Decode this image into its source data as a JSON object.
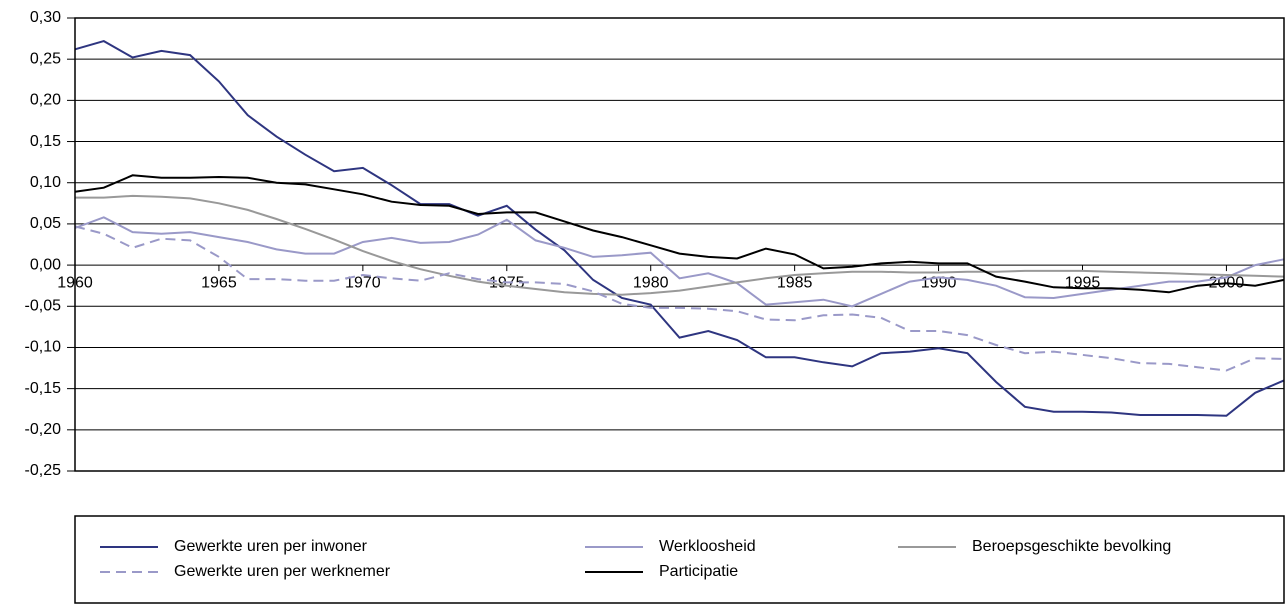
{
  "chart_data": {
    "type": "line",
    "x": [
      1960,
      1961,
      1962,
      1963,
      1964,
      1965,
      1966,
      1967,
      1968,
      1969,
      1970,
      1971,
      1972,
      1973,
      1974,
      1975,
      1976,
      1977,
      1978,
      1979,
      1980,
      1981,
      1982,
      1983,
      1984,
      1985,
      1986,
      1987,
      1988,
      1989,
      1990,
      1991,
      1992,
      1993,
      1994,
      1995,
      1996,
      1997,
      1998,
      1999,
      2000,
      2001,
      2002
    ],
    "xlim": [
      1960,
      2002
    ],
    "xticks": [
      1960,
      1965,
      1970,
      1975,
      1980,
      1985,
      1990,
      1995,
      2000
    ],
    "ylim": [
      -0.25,
      0.3
    ],
    "yticks": [
      {
        "value": -0.25,
        "label": "-0,25"
      },
      {
        "value": -0.2,
        "label": "-0,20"
      },
      {
        "value": -0.15,
        "label": "-0,15"
      },
      {
        "value": -0.1,
        "label": "-0,10"
      },
      {
        "value": -0.05,
        "label": "-0,05"
      },
      {
        "value": 0,
        "label": "0,00"
      },
      {
        "value": 0.05,
        "label": "0,05"
      },
      {
        "value": 0.1,
        "label": "0,10"
      },
      {
        "value": 0.15,
        "label": "0,15"
      },
      {
        "value": 0.2,
        "label": "0,20"
      },
      {
        "value": 0.25,
        "label": "0,25"
      },
      {
        "value": 0.3,
        "label": "0,30"
      }
    ],
    "grid": true,
    "series": [
      {
        "name": "Gewerkte uren per inwoner",
        "color": "#2e3580",
        "dashed": false,
        "values": [
          0.262,
          0.272,
          0.252,
          0.26,
          0.255,
          0.223,
          0.182,
          0.156,
          0.134,
          0.114,
          0.118,
          0.097,
          0.074,
          0.074,
          0.06,
          0.072,
          0.043,
          0.018,
          -0.018,
          -0.04,
          -0.048,
          -0.088,
          -0.08,
          -0.091,
          -0.112,
          -0.112,
          -0.118,
          -0.123,
          -0.107,
          -0.105,
          -0.101,
          -0.107,
          -0.142,
          -0.172,
          -0.178,
          -0.178,
          -0.179,
          -0.182,
          -0.182,
          -0.182,
          -0.183,
          -0.155,
          -0.14
        ]
      },
      {
        "name": "Werkloosheid",
        "color": "#9a99c8",
        "dashed": false,
        "values": [
          0.045,
          0.058,
          0.04,
          0.038,
          0.04,
          0.034,
          0.028,
          0.019,
          0.014,
          0.014,
          0.028,
          0.033,
          0.027,
          0.028,
          0.037,
          0.055,
          0.03,
          0.021,
          0.01,
          0.012,
          0.015,
          -0.016,
          -0.01,
          -0.022,
          -0.048,
          -0.045,
          -0.042,
          -0.05,
          -0.035,
          -0.02,
          -0.015,
          -0.018,
          -0.025,
          -0.039,
          -0.04,
          -0.035,
          -0.03,
          -0.025,
          -0.02,
          -0.02,
          -0.015,
          0.0,
          0.007
        ]
      },
      {
        "name": "Beroepsgeschikte bevolking",
        "color": "#999999",
        "dashed": false,
        "values": [
          0.082,
          0.082,
          0.084,
          0.083,
          0.081,
          0.075,
          0.067,
          0.056,
          0.044,
          0.031,
          0.017,
          0.005,
          -0.005,
          -0.013,
          -0.02,
          -0.025,
          -0.029,
          -0.033,
          -0.035,
          -0.036,
          -0.034,
          -0.031,
          -0.026,
          -0.021,
          -0.016,
          -0.012,
          -0.01,
          -0.008,
          -0.008,
          -0.009,
          -0.009,
          -0.008,
          -0.008,
          -0.007,
          -0.007,
          -0.007,
          -0.008,
          -0.009,
          -0.01,
          -0.011,
          -0.012,
          -0.013,
          -0.014
        ]
      },
      {
        "name": "Gewerkte uren per werknemer",
        "color": "#9a99c8",
        "dashed": true,
        "values": [
          0.047,
          0.038,
          0.021,
          0.032,
          0.03,
          0.01,
          -0.017,
          -0.017,
          -0.019,
          -0.019,
          -0.012,
          -0.016,
          -0.019,
          -0.01,
          -0.017,
          -0.021,
          -0.021,
          -0.023,
          -0.032,
          -0.047,
          -0.052,
          -0.052,
          -0.053,
          -0.056,
          -0.066,
          -0.067,
          -0.061,
          -0.06,
          -0.064,
          -0.08,
          -0.08,
          -0.085,
          -0.097,
          -0.107,
          -0.105,
          -0.109,
          -0.113,
          -0.119,
          -0.12,
          -0.124,
          -0.128,
          -0.113,
          -0.114
        ]
      },
      {
        "name": "Participatie",
        "color": "#000000",
        "dashed": false,
        "values": [
          0.089,
          0.094,
          0.109,
          0.106,
          0.106,
          0.107,
          0.106,
          0.1,
          0.098,
          0.092,
          0.086,
          0.077,
          0.073,
          0.072,
          0.062,
          0.064,
          0.064,
          0.053,
          0.042,
          0.034,
          0.024,
          0.014,
          0.01,
          0.008,
          0.02,
          0.013,
          -0.004,
          -0.002,
          0.002,
          0.004,
          0.002,
          0.002,
          -0.014,
          -0.02,
          -0.027,
          -0.028,
          -0.028,
          -0.03,
          -0.033,
          -0.025,
          -0.022,
          -0.025,
          -0.018
        ]
      }
    ]
  }
}
